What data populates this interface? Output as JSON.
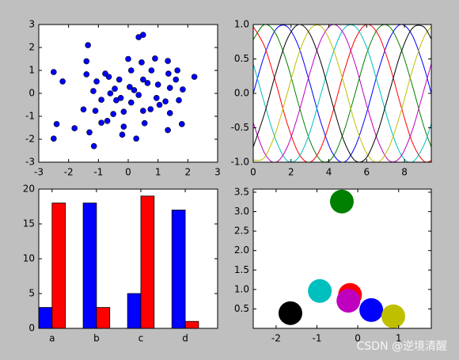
{
  "chart_data": [
    {
      "type": "scatter",
      "x": [
        -2.5,
        -2.2,
        -2.5,
        -2.4,
        -1.8,
        -1.35,
        -1.4,
        -1.4,
        -1.3,
        -1.15,
        -1.06,
        -0.9,
        -0.77,
        -0.65,
        -0.9,
        -1.17,
        -1.1,
        -1.5,
        -0.5,
        -0.45,
        -0.3,
        -0.2,
        -0.15,
        0,
        0.1,
        0.05,
        0.1,
        0.35,
        0.5,
        0.45,
        0.5,
        0.35,
        0.5,
        0.55,
        0.27,
        0.78,
        0.9,
        0.95,
        1.0,
        1.33,
        1.35,
        1.25,
        1.4,
        1.33,
        1.4,
        1.6,
        1.65,
        1.8,
        1.7,
        2.22,
        1.83,
        -0.6,
        -0.4,
        -0.25,
        0.2,
        0.65,
        0.75,
        1.05,
        -0.15,
        -0.7
      ],
      "y": [
        0.93,
        0.52,
        -1.97,
        -1.34,
        -1.52,
        2.1,
        1.4,
        0.83,
        -1.7,
        -2.3,
        0.52,
        -1.28,
        0.86,
        0.72,
        -0.28,
        0.1,
        -0.76,
        -0.7,
        -0.9,
        0.2,
        0.6,
        -1.8,
        -1.45,
        1.5,
        1.0,
        0.28,
        -0.4,
        2.45,
        2.55,
        1.35,
        0.6,
        -0.07,
        -0.76,
        -1.3,
        -1.97,
        1.0,
        1.52,
        -0.2,
        0.38,
        1.41,
        0.86,
        -0.35,
        0.24,
        -1.6,
        -0.86,
        0.6,
        1.0,
        -1.34,
        -0.3,
        0.72,
        0.17,
        0.0,
        -0.3,
        -0.2,
        0.14,
        0.45,
        -0.69,
        -0.5,
        -0.8,
        -1.2
      ],
      "color": "#0000ff",
      "xlim": [
        -3,
        3
      ],
      "ylim": [
        -3,
        3
      ],
      "xticks": [
        -3,
        -2,
        -1,
        0,
        1,
        2,
        3
      ],
      "yticks": [
        -3,
        -2,
        -1,
        0,
        1,
        2,
        3
      ]
    },
    {
      "type": "line",
      "x": [
        0,
        0.6,
        1.2,
        1.8,
        2.4,
        3.0,
        3.6,
        4.2,
        4.8,
        5.4,
        6.0,
        6.6,
        7.2,
        7.8,
        8.4,
        9.0,
        9.42
      ],
      "series": [
        {
          "color": "#0000ff",
          "values": [
            0,
            0.56,
            0.93,
            0.97,
            0.68,
            0.14,
            -0.44,
            -0.87,
            -1.0,
            -0.77,
            -0.28,
            0.31,
            0.79,
            1.0,
            0.85,
            0.41,
            0.0
          ]
        },
        {
          "color": "#008000",
          "values": [
            0.78,
            1.0,
            0.86,
            0.43,
            -0.16,
            -0.69,
            -0.98,
            -0.93,
            -0.55,
            0.01,
            0.58,
            0.94,
            0.97,
            0.66,
            0.13,
            -0.46,
            -0.78
          ]
        },
        {
          "color": "#ff0000",
          "values": [
            0.97,
            0.68,
            0.15,
            -0.44,
            -0.87,
            -1.0,
            -0.78,
            -0.28,
            0.31,
            0.79,
            1.0,
            0.86,
            0.42,
            -0.17,
            -0.7,
            -0.98,
            -0.98
          ]
        },
        {
          "color": "#00bfbf",
          "values": [
            0.43,
            -0.15,
            -0.68,
            -0.98,
            -0.93,
            -0.56,
            0.01,
            0.57,
            0.94,
            0.97,
            0.67,
            0.13,
            -0.45,
            -0.88,
            -1.0,
            -0.77,
            -0.44
          ]
        },
        {
          "color": "#bf00bf",
          "values": [
            -0.43,
            -0.87,
            -1.0,
            -0.78,
            -0.29,
            0.3,
            0.79,
            1.0,
            0.86,
            0.42,
            -0.17,
            -0.69,
            -0.98,
            -0.92,
            -0.55,
            0.02,
            0.43
          ]
        },
        {
          "color": "#bfbf00",
          "values": [
            -0.97,
            -0.93,
            -0.56,
            0.0,
            0.57,
            0.93,
            0.97,
            0.67,
            0.14,
            -0.45,
            -0.87,
            -1.0,
            -0.77,
            -0.28,
            0.32,
            0.8,
            0.97
          ]
        },
        {
          "color": "#000000",
          "values": [
            -0.78,
            -0.29,
            0.3,
            0.79,
            1.0,
            0.86,
            0.43,
            -0.16,
            -0.69,
            -0.98,
            -0.93,
            -0.55,
            0.02,
            0.58,
            0.94,
            0.97,
            0.79
          ]
        }
      ],
      "xlim": [
        0,
        9.42
      ],
      "ylim": [
        -1,
        1
      ],
      "xticks": [
        0,
        2,
        4,
        6,
        8
      ],
      "yticks": [
        {
          "value": -1,
          "label": "-1.0"
        },
        {
          "value": -0.5,
          "label": "-0.5"
        },
        {
          "value": 0,
          "label": "0.0"
        },
        {
          "value": 0.5,
          "label": "0.5"
        },
        {
          "value": 1,
          "label": "1.0"
        }
      ]
    },
    {
      "type": "bar",
      "categories": [
        "a",
        "b",
        "c",
        "d"
      ],
      "series": [
        {
          "color": "#0000ff",
          "values": [
            3,
            18,
            5,
            17
          ]
        },
        {
          "color": "#ff0000",
          "values": [
            18,
            3,
            19,
            1
          ]
        }
      ],
      "ylim": [
        0,
        20
      ],
      "yticks": [
        0,
        5,
        10,
        15,
        20
      ]
    },
    {
      "type": "bubble",
      "x": [
        -0.39,
        -0.93,
        -0.19,
        -0.23,
        -1.65,
        0.33,
        0.87
      ],
      "y": [
        3.26,
        0.96,
        0.86,
        0.71,
        0.39,
        0.47,
        0.31
      ],
      "colors": [
        "#008000",
        "#00bfbf",
        "#ff0000",
        "#bf00bf",
        "#000000",
        "#0000ff",
        "#bfbf00"
      ],
      "xlim": [
        -2.56,
        1.8
      ],
      "ylim": [
        0,
        3.58
      ],
      "xticks": [
        -2,
        -1,
        0,
        1
      ],
      "yticks": [
        {
          "value": 0.5,
          "label": "0.5"
        },
        {
          "value": 1,
          "label": "1.0"
        },
        {
          "value": 1.5,
          "label": "1.5"
        },
        {
          "value": 2,
          "label": "2.0"
        },
        {
          "value": 2.5,
          "label": "2.5"
        },
        {
          "value": 3,
          "label": "3.0"
        },
        {
          "value": 3.5,
          "label": "3.5"
        }
      ]
    }
  ],
  "watermark": "CSDN @逆境清醒"
}
